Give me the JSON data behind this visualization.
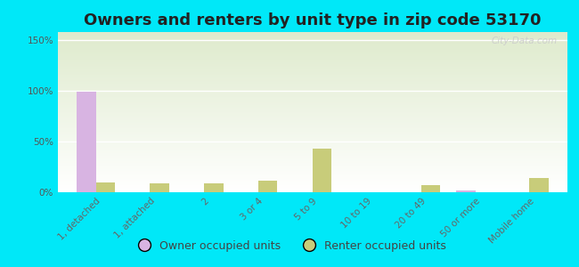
{
  "title": "Owners and renters by unit type in zip code 53170",
  "categories": [
    "1, detached",
    "1, attached",
    "2",
    "3 or 4",
    "5 to 9",
    "10 to 19",
    "20 to 49",
    "50 or more",
    "Mobile home"
  ],
  "owner_values": [
    99,
    0,
    0,
    0,
    0,
    0,
    0,
    2,
    0
  ],
  "renter_values": [
    10,
    9,
    9,
    11,
    43,
    0,
    7,
    0,
    14
  ],
  "owner_color": "#d8b4e2",
  "renter_color": "#c8cc7a",
  "background_outer": "#00e8f8",
  "background_plot_top": "#deeacc",
  "background_plot_bottom": "#f5f8ee",
  "yticks": [
    0,
    50,
    100,
    150
  ],
  "ytick_labels": [
    "0%",
    "50%",
    "100%",
    "150%"
  ],
  "ylim": [
    0,
    158
  ],
  "bar_width": 0.35,
  "title_fontsize": 13,
  "tick_fontsize": 7.5,
  "legend_fontsize": 9,
  "watermark": "City-Data.com"
}
